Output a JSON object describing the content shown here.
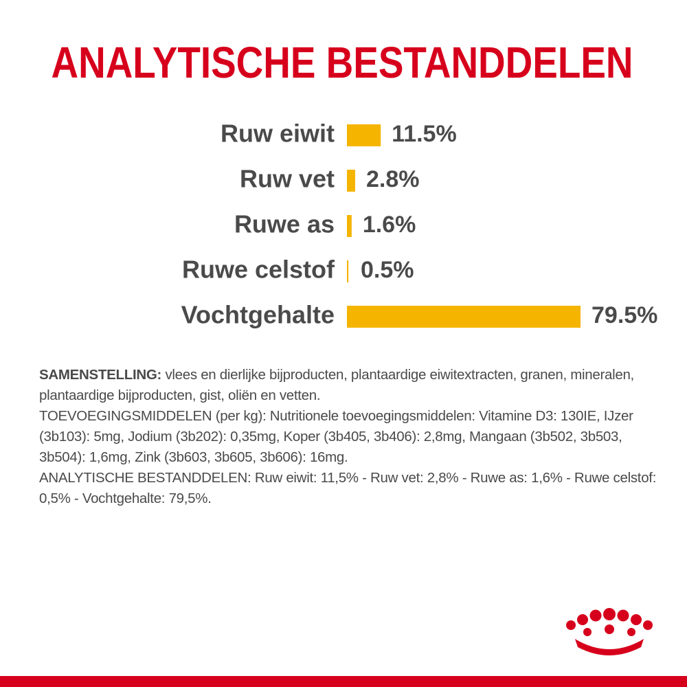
{
  "chart_data": {
    "type": "bar",
    "orientation": "horizontal",
    "title": "ANALYTISCHE BESTANDDELEN",
    "categories": [
      "Ruw eiwit",
      "Ruw vet",
      "Ruwe as",
      "Ruwe celstof",
      "Vochtgehalte"
    ],
    "values": [
      11.5,
      2.8,
      1.6,
      0.5,
      79.5
    ],
    "value_labels": [
      "11.5%",
      "2.8%",
      "1.6%",
      "0.5%",
      "79.5%"
    ],
    "color": "#f4b400"
  },
  "composition": {
    "label": "SAMENSTELLING:",
    "text": "vlees en dierlijke bijproducten, plantaardige eiwitextracten, granen, mineralen, plantaardige bijproducten, gist, oliën en vetten.",
    "additives": "TOEVOEGINGSMIDDELEN (per kg): Nutritionele toevoegingsmiddelen: Vitamine D3: 130IE, IJzer (3b103): 5mg, Jodium (3b202): 0,35mg, Koper (3b405, 3b406): 2,8mg, Mangaan (3b502, 3b503, 3b504): 1,6mg, Zink (3b603, 3b605, 3b606): 16mg.",
    "analysis": "ANALYTISCHE BESTANDDELEN: Ruw eiwit: 11,5% - Ruw vet: 2,8% - Ruwe as: 1,6% - Ruwe celstof: 0,5% - Vochtgehalte: 79,5%."
  }
}
